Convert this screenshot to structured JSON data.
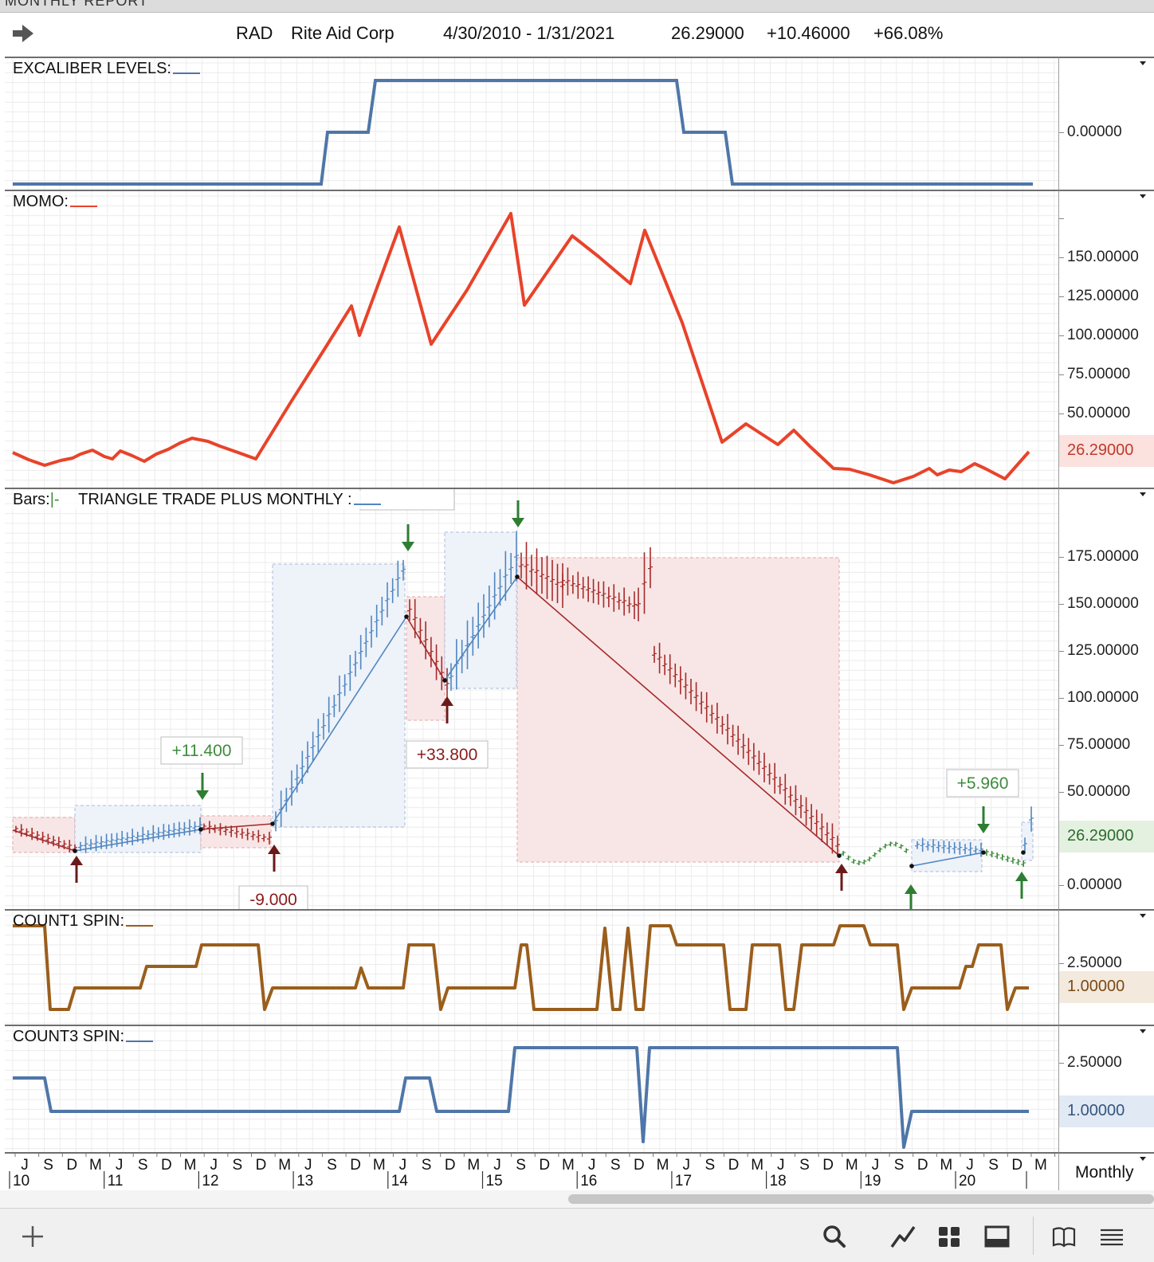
{
  "window": {
    "title": "MONTHLY REPORT"
  },
  "header": {
    "symbol": "RAD",
    "company": "Rite Aid Corp",
    "date_range": "4/30/2010 - 1/31/2021",
    "last": "26.29000",
    "change": "+10.46000",
    "change_pct": "+66.08%"
  },
  "panels": {
    "excaliber": {
      "label": "EXCALIBER LEVELS:",
      "axis_ticks": [
        "0.00000"
      ],
      "line_color": "#4f76a8"
    },
    "momo": {
      "label": "MOMO:",
      "axis_ticks": [
        "150.00000",
        "125.00000",
        "100.00000",
        "75.00000",
        "50.00000"
      ],
      "current": "26.29000",
      "line_color": "#e8432a"
    },
    "bars": {
      "label_prefix": "Bars:",
      "label_symbol": "|-",
      "label": "TRIANGLE TRADE PLUS MONTHLY :",
      "axis_ticks": [
        "175.00000",
        "150.00000",
        "125.00000",
        "100.00000",
        "75.00000",
        "50.00000",
        "0.00000"
      ],
      "current": "26.29000",
      "trade_labels": [
        {
          "text": "+11.400",
          "color": "#3d8b3d"
        },
        {
          "text": "+33.800",
          "color": "#8b1a1a"
        },
        {
          "text": "+5.960",
          "color": "#3d8b3d"
        },
        {
          "text": "-9.000",
          "color": "#8b1a1a"
        }
      ],
      "up_color": "#4f86c0",
      "down_color": "#a52a2a",
      "up_box_color": "#eef2f9",
      "down_box_color": "#f8e6e6"
    },
    "count1": {
      "label": "COUNT1 SPIN:",
      "axis_ticks": [
        "2.50000"
      ],
      "current": "1.00000",
      "line_color": "#9a5e1c"
    },
    "count3": {
      "label": "COUNT3 SPIN:",
      "axis_ticks": [
        "2.50000"
      ],
      "current": "1.00000",
      "line_color": "#4f76a8"
    }
  },
  "x_axis": {
    "months": [
      "J",
      "S",
      "D",
      "M",
      "J",
      "S",
      "D",
      "M",
      "J",
      "S",
      "D",
      "M",
      "J",
      "S",
      "D",
      "M",
      "J",
      "S",
      "D",
      "M",
      "J",
      "S",
      "D",
      "M",
      "J",
      "S",
      "D",
      "M",
      "J",
      "S",
      "D",
      "M",
      "J",
      "S",
      "D",
      "M",
      "J",
      "S",
      "D",
      "M",
      "J",
      "S",
      "D",
      "M",
      "J",
      "S",
      "D"
    ],
    "years": [
      "10",
      "11",
      "12",
      "13",
      "14",
      "15",
      "16",
      "17",
      "18",
      "19",
      "20"
    ]
  },
  "timeframe": "Monthly",
  "toolbar": {
    "icons": [
      "plus-icon",
      "search-icon",
      "line-chart-icon",
      "grid-icon",
      "window-icon",
      "book-icon",
      "menu-icon"
    ]
  }
}
